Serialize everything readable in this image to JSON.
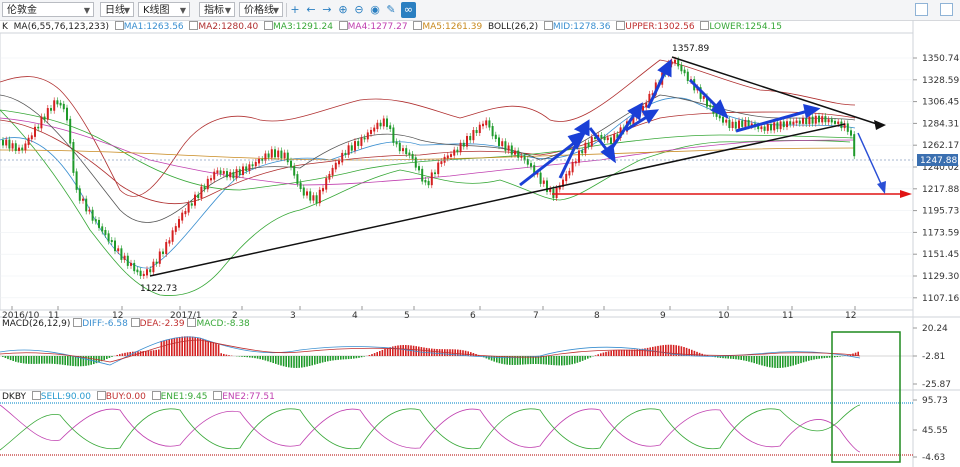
{
  "toolbar": {
    "symbol": "伦敦金",
    "period": "日线",
    "chart_type": "K线图",
    "indicator": "指标",
    "price_line": "价格线"
  },
  "main_legend": {
    "k_label": "K",
    "ma": "MA(6,55,76,123,233)",
    "ma1": "MA1:1263.56",
    "ma2": "MA2:1280.40",
    "ma3": "MA3:1291.24",
    "ma4": "MA4:1277.27",
    "ma5": "MA5:1261.39",
    "boll": "BOLL(26,2)",
    "mid": "MID:1278.36",
    "upper": "UPPER:1302.56",
    "lower": "LOWER:1254.15"
  },
  "price_axis": [
    "1350.74",
    "1328.59",
    "1306.45",
    "1284.31",
    "1262.17",
    "1240.02",
    "1217.88",
    "1195.73",
    "1173.59",
    "1151.45",
    "1129.30",
    "1107.16"
  ],
  "current_price": "1247.88",
  "annotations": {
    "high": "1357.89",
    "low": "1122.73"
  },
  "time_axis": [
    "2016/10",
    "11",
    "12",
    "2017/1",
    "2",
    "3",
    "4",
    "5",
    "6",
    "7",
    "8",
    "9",
    "10",
    "11",
    "12"
  ],
  "macd_legend": {
    "title": "MACD(26,12,9)",
    "diff": "DIFF:-6.58",
    "dea": "DEA:-2.39",
    "macd": "MACD:-8.38"
  },
  "macd_axis": [
    "20.24",
    "-2.81",
    "-25.87"
  ],
  "dkby_legend": {
    "title": "DKBY",
    "sell": "SELL:90.00",
    "buy": "BUY:0.00",
    "ene1": "ENE1:9.45",
    "ene2": "ENE2:77.51"
  },
  "dkby_axis": [
    "95.73",
    "45.55",
    "-4.63"
  ],
  "colors": {
    "up": "#d42020",
    "down": "#1f9a2a",
    "blue_arrow": "#1a3fd6",
    "red_line": "#e01414",
    "green_box": "#1f8a1f",
    "ma1": "#3a8fd0",
    "ma2": "#b03030",
    "ma3": "#38a838",
    "ma4": "#c040b0",
    "ma5": "#c88a20",
    "boll": "#444444"
  }
}
